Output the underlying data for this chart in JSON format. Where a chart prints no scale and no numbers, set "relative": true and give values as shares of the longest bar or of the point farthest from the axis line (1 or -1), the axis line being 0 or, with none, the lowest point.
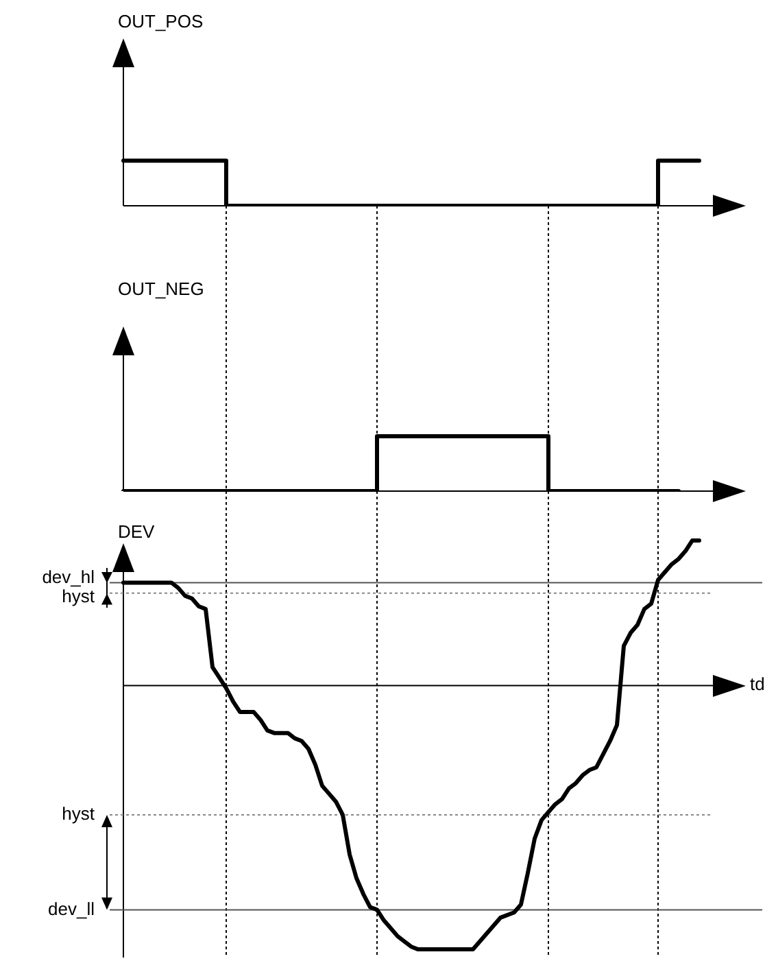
{
  "chart_data": [
    {
      "type": "step",
      "ylabel": "OUT_POS",
      "relative": true,
      "grid": "x",
      "color": "#000000",
      "marker": "none",
      "line_style": "solid",
      "categories": [
        null,
        null,
        null,
        null,
        null,
        null,
        null,
        null,
        null,
        null,
        null,
        null,
        null,
        null,
        null,
        null,
        null,
        null,
        null,
        null,
        null,
        null,
        null,
        null,
        null,
        null,
        null,
        null,
        null,
        null,
        null,
        null,
        null,
        null,
        null,
        null,
        null,
        null,
        null,
        null,
        null,
        null,
        null,
        null,
        null,
        null,
        null,
        null,
        null,
        null,
        null,
        null,
        null,
        null,
        null,
        null,
        null,
        null,
        null,
        null,
        null,
        null,
        null,
        null,
        null,
        null,
        null,
        null,
        null,
        null,
        null,
        null,
        null,
        null,
        null,
        null,
        null,
        null,
        null,
        null,
        null,
        null,
        null,
        null,
        null,
        null,
        null
      ],
      "values": [
        1,
        1,
        1,
        1,
        1,
        1,
        1,
        1,
        1,
        1,
        1,
        1,
        1,
        1,
        1,
        0,
        0,
        0,
        0,
        0,
        0,
        0,
        0,
        0,
        0,
        0,
        0,
        0,
        0,
        0,
        0,
        0,
        0,
        0,
        0,
        0,
        0,
        0,
        0,
        0,
        0,
        0,
        0,
        0,
        0,
        0,
        0,
        0,
        0,
        0,
        0,
        0,
        0,
        0,
        0,
        0,
        0,
        0,
        0,
        0,
        0,
        0,
        0,
        0,
        0,
        0,
        0,
        0,
        0,
        0,
        0,
        0,
        0,
        0,
        0,
        0,
        0,
        0,
        1,
        1,
        1,
        1,
        1,
        1,
        1,
        null,
        null
      ]
    },
    {
      "type": "step",
      "ylabel": "OUT_NEG",
      "relative": true,
      "grid": "x",
      "color": "#000000",
      "marker": "none",
      "line_style": "solid",
      "categories": [
        null,
        null,
        null,
        null,
        null,
        null,
        null,
        null,
        null,
        null,
        null,
        null,
        null,
        null,
        null,
        null,
        null,
        null,
        null,
        null,
        null,
        null,
        null,
        null,
        null,
        null,
        null,
        null,
        null,
        null,
        null,
        null,
        null,
        null,
        null,
        null,
        null,
        null,
        null,
        null,
        null,
        null,
        null,
        null,
        null,
        null,
        null,
        null,
        null,
        null,
        null,
        null,
        null,
        null,
        null,
        null,
        null,
        null,
        null,
        null,
        null,
        null,
        null,
        null,
        null,
        null,
        null,
        null,
        null,
        null,
        null,
        null,
        null,
        null,
        null,
        null,
        null,
        null,
        null,
        null,
        null,
        null,
        null,
        null,
        null,
        null,
        null
      ],
      "values": [
        0,
        0,
        0,
        0,
        0,
        0,
        0,
        0,
        0,
        0,
        0,
        0,
        0,
        0,
        0,
        0,
        0,
        0,
        0,
        0,
        0,
        0,
        0,
        0,
        0,
        0,
        0,
        0,
        0,
        0,
        0,
        0,
        0,
        0,
        0,
        0,
        0,
        1,
        1,
        1,
        1,
        1,
        1,
        1,
        1,
        1,
        1,
        1,
        1,
        1,
        1,
        1,
        1,
        1,
        1,
        1,
        1,
        1,
        1,
        1,
        1,
        1,
        0,
        0,
        0,
        0,
        0,
        0,
        0,
        0,
        0,
        0,
        0,
        0,
        0,
        0,
        0,
        0,
        0,
        0,
        0,
        0,
        null,
        null,
        null,
        null,
        null
      ]
    },
    {
      "type": "line",
      "ylabel": "DEV",
      "xlabel": "td",
      "relative": true,
      "grid": "x",
      "color": "#000000",
      "marker": "none",
      "line_style": "solid",
      "categories": [
        null,
        null,
        null,
        null,
        null,
        null,
        null,
        null,
        null,
        null,
        null,
        null,
        null,
        null,
        null,
        null,
        null,
        null,
        null,
        null,
        null,
        null,
        null,
        null,
        null,
        null,
        null,
        null,
        null,
        null,
        null,
        null,
        null,
        null,
        null,
        null,
        null,
        null,
        null,
        null,
        null,
        null,
        null,
        null,
        null,
        null,
        null,
        null,
        null,
        null,
        null,
        null,
        null,
        null,
        null,
        null,
        null,
        null,
        null,
        null,
        null,
        null,
        null,
        null,
        null,
        null,
        null,
        null,
        null,
        null,
        null,
        null,
        null,
        null,
        null,
        null,
        null,
        null,
        null,
        null,
        null,
        null,
        null,
        null,
        null,
        null,
        null
      ],
      "values": [
        0.39,
        null,
        null,
        null,
        null,
        null,
        null,
        0.39,
        0.37,
        0.34,
        0.33,
        0.3,
        0.29,
        0.07,
        0.03,
        -0.01,
        -0.06,
        -0.1,
        null,
        -0.1,
        -0.13,
        -0.17,
        -0.18,
        null,
        -0.18,
        -0.2,
        -0.21,
        -0.24,
        -0.3,
        -0.38,
        -0.41,
        -0.44,
        -0.49,
        -0.64,
        -0.73,
        -0.79,
        -0.84,
        -0.85,
        -0.89,
        -0.92,
        -0.95,
        -0.97,
        -0.99,
        -1,
        null,
        null,
        null,
        null,
        null,
        null,
        null,
        -1,
        -0.97,
        -0.94,
        -0.91,
        -0.88,
        null,
        -0.86,
        -0.83,
        -0.71,
        -0.58,
        -0.51,
        -0.48,
        -0.45,
        -0.43,
        -0.39,
        -0.37,
        -0.34,
        -0.32,
        -0.31,
        -0.26,
        -0.21,
        -0.15,
        0.15,
        0.2,
        0.23,
        0.29,
        0.31,
        0.4,
        0.43,
        0.46,
        0.48,
        0.51,
        0.55,
        0.55,
        null,
        null
      ],
      "ref_lines": [
        {
          "axis": "y",
          "value": 0.39,
          "label": "dev_hl",
          "color": "#555555",
          "line_style": "solid"
        },
        {
          "axis": "y",
          "value": 0.35,
          "label": "hyst",
          "color": "#888888",
          "line_style": "dotted"
        },
        {
          "axis": "y",
          "value": -0.49,
          "label": "hyst",
          "color": "#888888",
          "line_style": "dotted"
        },
        {
          "axis": "y",
          "value": -0.85,
          "label": "dev_ll",
          "color": "#555555",
          "line_style": "solid"
        }
      ]
    }
  ]
}
